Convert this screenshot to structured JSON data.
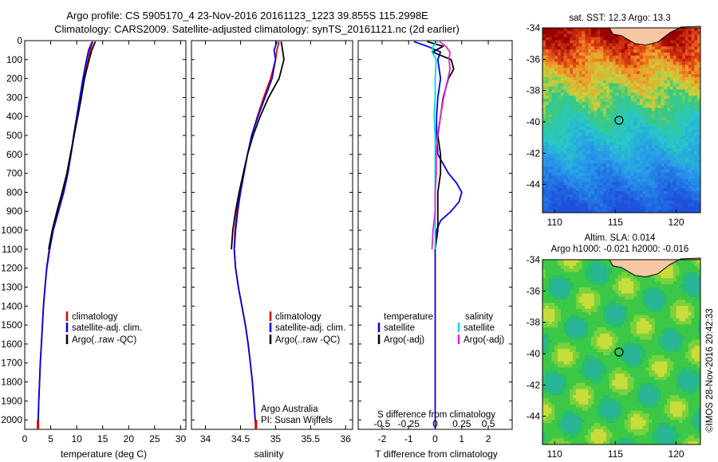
{
  "header": {
    "title_line1": "Argo profile: CS 5905170_4 23-Nov-2016 20161123_1223 39.855S 115.2998E",
    "title_line2": "Climatology: CARS2009. Satellite-adjusted climatology: synTS_20161121.nc (2d earlier)"
  },
  "colors": {
    "climatology": "#e00000",
    "satellite": "#0000e6",
    "argo": "#000000",
    "satellite_salinity": "#00dddd",
    "argo_salinity": "#e020e0"
  },
  "chart_data": [
    {
      "type": "line",
      "xlabel": "temperature (deg C)",
      "xlim": [
        0,
        31
      ],
      "xticks": [
        "0",
        "5",
        "10",
        "15",
        "20",
        "25",
        "30"
      ],
      "ylim": [
        0,
        2050
      ],
      "yticks": [
        "0",
        "100",
        "200",
        "300",
        "400",
        "500",
        "600",
        "700",
        "800",
        "900",
        "1000",
        "1100",
        "1200",
        "1300",
        "1400",
        "1500",
        "1600",
        "1700",
        "1800",
        "1900",
        "2000"
      ],
      "legend": [
        "climatology",
        "satellite-adj. clim.",
        "Argo(..raw -QC)"
      ],
      "series": [
        {
          "name": "climatology",
          "color": "#e00000",
          "depth": [
            5,
            50,
            100,
            200,
            300,
            400,
            500,
            600,
            700,
            800,
            900,
            1000,
            1100,
            1200,
            1300,
            1400,
            1500,
            1600,
            1700,
            1800,
            1900,
            2000,
            2050
          ],
          "values": [
            13.1,
            12.6,
            12.2,
            11.4,
            10.7,
            10.1,
            9.5,
            8.9,
            8.2,
            7.4,
            6.4,
            5.4,
            4.7,
            4.2,
            3.9,
            3.6,
            3.4,
            3.2,
            3.0,
            2.85,
            2.7,
            2.6,
            2.55
          ]
        },
        {
          "name": "satellite-adj. clim.",
          "color": "#0000e6",
          "depth": [
            5,
            50,
            100,
            200,
            300,
            400,
            500,
            600,
            700,
            800,
            900,
            1000,
            1100,
            1200,
            1300,
            1400,
            1500,
            1600,
            1700,
            1800,
            1900,
            2000,
            2050
          ],
          "values": [
            13.0,
            12.3,
            11.9,
            11.2,
            10.6,
            10.0,
            9.4,
            8.9,
            8.3,
            7.5,
            6.5,
            5.5,
            4.8,
            4.25,
            3.9,
            3.6,
            3.4,
            3.2,
            3.0,
            2.85,
            2.7,
            2.6,
            2.55
          ]
        },
        {
          "name": "Argo(..raw -QC)",
          "color": "#000000",
          "depth": [
            5,
            50,
            100,
            200,
            300,
            400,
            500,
            600,
            700,
            800,
            900,
            1000,
            1100
          ],
          "values": [
            13.6,
            12.9,
            12.4,
            11.5,
            10.9,
            10.2,
            9.5,
            8.8,
            8.1,
            7.2,
            6.2,
            5.3,
            4.6
          ]
        }
      ]
    },
    {
      "type": "line",
      "xlabel": "salinity",
      "xlim": [
        33.8,
        36.1
      ],
      "xticks": [
        "34",
        "34.5",
        "35",
        "35.5",
        "36"
      ],
      "ylim": [
        0,
        2050
      ],
      "legend": [
        "climatology",
        "satellite-adj. clim.",
        "Argo(..raw -QC)"
      ],
      "annotation": [
        "Argo Australia",
        "PI: Susan Wijffels"
      ],
      "series": [
        {
          "name": "climatology",
          "color": "#e00000",
          "depth": [
            5,
            50,
            100,
            200,
            300,
            400,
            500,
            600,
            700,
            800,
            900,
            1000,
            1100,
            1200,
            1300,
            1400,
            1500,
            1600,
            1700,
            1800,
            1900,
            2000,
            2050
          ],
          "values": [
            35.05,
            35.02,
            35.0,
            34.93,
            34.83,
            34.74,
            34.66,
            34.6,
            34.54,
            34.49,
            34.45,
            34.42,
            34.41,
            34.43,
            34.47,
            34.52,
            34.57,
            34.61,
            34.64,
            34.67,
            34.69,
            34.71,
            34.72
          ]
        },
        {
          "name": "satellite-adj. clim.",
          "color": "#0000e6",
          "depth": [
            5,
            50,
            100,
            200,
            300,
            400,
            500,
            600,
            700,
            800,
            900,
            1000,
            1100,
            1200,
            1300,
            1400,
            1500,
            1600,
            1700,
            1800,
            1900,
            2000,
            2050
          ],
          "values": [
            35.02,
            34.98,
            35.0,
            34.95,
            34.85,
            34.75,
            34.66,
            34.6,
            34.55,
            34.5,
            34.46,
            34.43,
            34.41,
            34.43,
            34.47,
            34.52,
            34.57,
            34.61,
            34.64,
            34.67,
            34.69,
            34.71,
            34.72
          ]
        },
        {
          "name": "Argo(..raw -QC)",
          "color": "#000000",
          "depth": [
            5,
            50,
            100,
            200,
            300,
            400,
            500,
            600,
            700,
            800,
            900,
            1000,
            1100
          ],
          "values": [
            35.08,
            35.1,
            35.12,
            35.05,
            34.9,
            34.78,
            34.68,
            34.6,
            34.54,
            34.48,
            34.43,
            34.39,
            34.37
          ]
        }
      ]
    },
    {
      "type": "line",
      "xlabel": "T difference from climatology",
      "xlabel_top": "S difference from climatology",
      "xlim": [
        -2.9,
        2.9
      ],
      "xticks": [
        "-2",
        "-1",
        "0",
        "1",
        "2"
      ],
      "xticks_top": [
        "-0.5",
        "-0.25",
        "0",
        "0.25",
        "0.5"
      ],
      "ylim": [
        0,
        2050
      ],
      "legend_titles": [
        "temperature",
        "salinity"
      ],
      "legend": [
        "satellite",
        "Argo(-adj)",
        "satellite",
        "Argo(-adj)"
      ],
      "series": [
        {
          "name": "satellite",
          "color": "#0000e6",
          "depth": [
            5,
            30,
            60,
            100,
            200,
            300,
            400,
            500,
            600,
            700,
            750,
            800,
            850,
            900,
            950,
            1000,
            1100,
            1200,
            1400,
            1600,
            1800,
            2000,
            2050
          ],
          "values": [
            -0.8,
            -0.3,
            0.2,
            0.1,
            0.2,
            0.1,
            0.05,
            0.05,
            0.1,
            0.5,
            0.8,
            1.0,
            0.9,
            0.6,
            0.2,
            0.05,
            0.0,
            0.0,
            0.0,
            0.0,
            0.0,
            0.0,
            0.0
          ]
        },
        {
          "name": "Argo(-adj)",
          "color": "#000000",
          "depth": [
            5,
            30,
            60,
            100,
            150,
            200,
            300,
            400,
            500,
            600,
            700,
            800,
            900,
            1000,
            1100
          ],
          "values": [
            -0.3,
            0.3,
            -0.1,
            0.6,
            0.7,
            0.5,
            0.3,
            0.2,
            0.1,
            0.2,
            0.2,
            0.1,
            0.1,
            0.1,
            0.0
          ]
        },
        {
          "name": "satellite",
          "color": "#00dddd",
          "depth": [
            5,
            30,
            60,
            100,
            200,
            300,
            400,
            500,
            600,
            700,
            800,
            900,
            1000,
            1100
          ],
          "values": [
            0.02,
            -0.02,
            -0.03,
            0.01,
            0.0,
            0.0,
            -0.01,
            0.0,
            0.0,
            0.0,
            0.0,
            0.0,
            0.0,
            0.0
          ]
        },
        {
          "name": "Argo(-adj)",
          "color": "#e020e0",
          "depth": [
            5,
            30,
            60,
            100,
            150,
            200,
            300,
            400,
            500,
            600,
            700,
            800,
            900,
            1000,
            1100
          ],
          "values": [
            0.04,
            0.1,
            0.14,
            0.13,
            0.14,
            0.12,
            0.08,
            0.05,
            0.02,
            0.01,
            0.01,
            0.0,
            0.0,
            -0.02,
            -0.03
          ]
        }
      ]
    },
    {
      "type": "heatmap",
      "title": "sat. SST: 12.3 Argo: 13.3",
      "xticks": [
        "110",
        "115",
        "120"
      ],
      "yticks": [
        "-34",
        "-36",
        "-38",
        "-40",
        "-42",
        "-44"
      ],
      "xlim": [
        109,
        122
      ],
      "ylim": [
        -45.8,
        -34
      ],
      "marker": {
        "lon": 115.3,
        "lat": -39.9
      }
    },
    {
      "type": "heatmap",
      "title_line1": "Altim. SLA: 0.014",
      "title_line2": "Argo h1000: -0.021 h2000: -0.016",
      "xticks": [
        "110",
        "115",
        "120"
      ],
      "yticks": [
        "-34",
        "-36",
        "-38",
        "-40",
        "-42",
        "-44"
      ],
      "xlim": [
        109,
        122
      ],
      "ylim": [
        -45.8,
        -34
      ],
      "marker": {
        "lon": 115.3,
        "lat": -39.9
      }
    }
  ],
  "credit": "©IMOS 28-Nov-2016 20:42:33"
}
